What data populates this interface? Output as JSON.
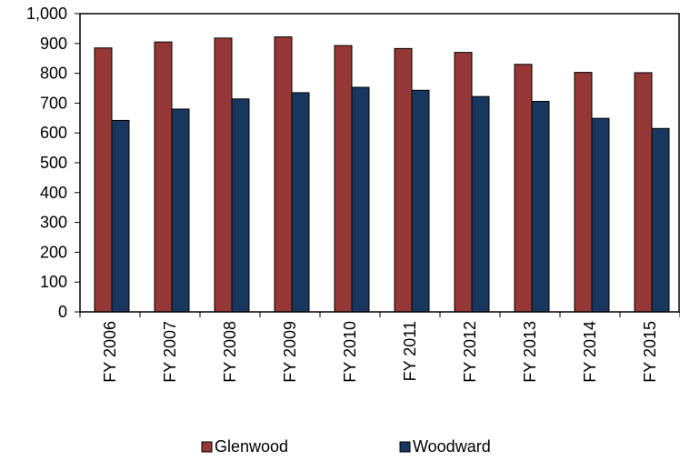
{
  "chart_data": {
    "type": "bar",
    "title": "",
    "xlabel": "",
    "ylabel": "",
    "categories": [
      "FY 2006",
      "FY 2007",
      "FY 2008",
      "FY 2009",
      "FY 2010",
      "FY 2011",
      "FY 2012",
      "FY 2013",
      "FY 2014",
      "FY 2015"
    ],
    "series": [
      {
        "name": "Glenwood",
        "color": "#953735",
        "values": [
          885,
          905,
          918,
          922,
          893,
          883,
          870,
          830,
          803,
          802
        ]
      },
      {
        "name": "Woodward",
        "color": "#17375E",
        "values": [
          642,
          680,
          714,
          735,
          753,
          743,
          722,
          706,
          649,
          615
        ]
      }
    ],
    "ylim": [
      0,
      1000
    ],
    "yticks": [
      0,
      100,
      200,
      300,
      400,
      500,
      600,
      700,
      800,
      900,
      1000
    ],
    "ytick_labels": [
      "0",
      "100",
      "200",
      "300",
      "400",
      "500",
      "600",
      "700",
      "800",
      "900",
      "1,000"
    ],
    "grid": false,
    "legend_position": "bottom"
  }
}
